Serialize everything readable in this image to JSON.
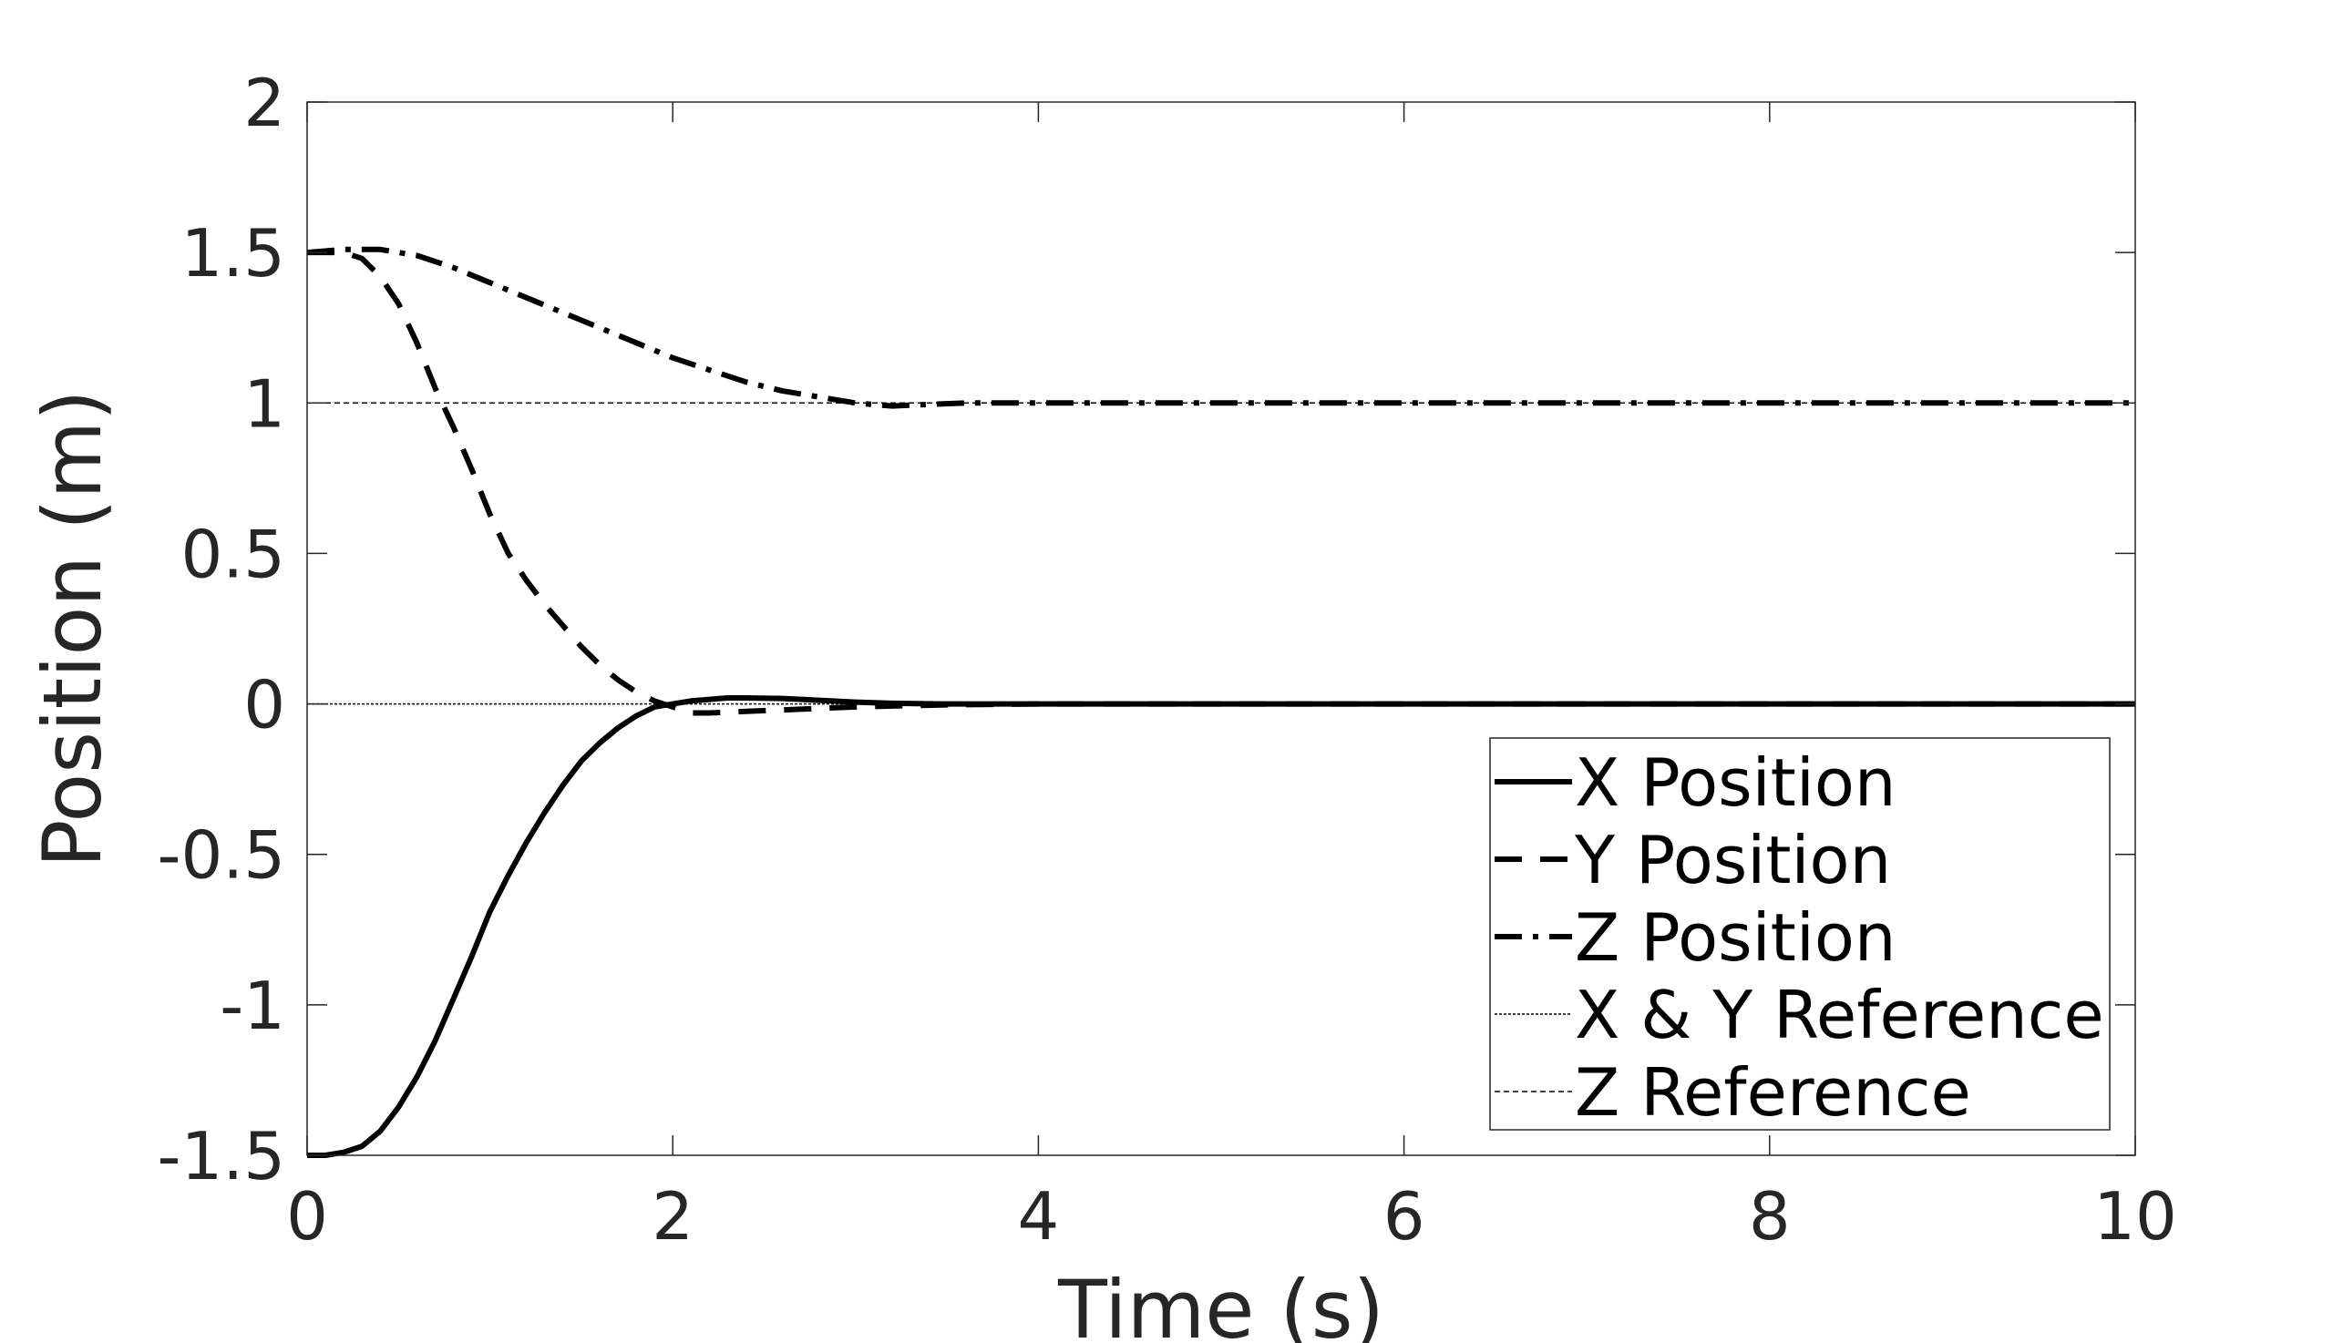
{
  "chart_data": {
    "type": "line",
    "xlabel": "Time (s)",
    "ylabel": "Position (m)",
    "xlim": [
      0,
      10
    ],
    "ylim": [
      -1.5,
      2
    ],
    "xticks": [
      0,
      2,
      4,
      6,
      8,
      10
    ],
    "xtick_labels": [
      "0",
      "2",
      "4",
      "6",
      "8",
      "10"
    ],
    "yticks": [
      -1.5,
      -1,
      -0.5,
      0,
      0.5,
      1,
      1.5,
      2
    ],
    "ytick_labels": [
      "-1.5",
      "-1",
      "-0.5",
      "0",
      "0.5",
      "1",
      "1.5",
      "2"
    ],
    "grid": false,
    "legend_position": "bottom-right",
    "series": [
      {
        "name": "X Position",
        "style": "solid",
        "x": [
          0,
          0.1,
          0.2,
          0.3,
          0.4,
          0.5,
          0.6,
          0.7,
          0.8,
          0.9,
          1.0,
          1.1,
          1.2,
          1.3,
          1.4,
          1.5,
          1.6,
          1.7,
          1.8,
          1.9,
          2.0,
          2.1,
          2.2,
          2.3,
          2.4,
          2.6,
          2.8,
          3.0,
          3.2,
          3.5,
          4.0,
          5.0,
          6.0,
          7.0,
          8.0,
          9.0,
          10.0
        ],
        "y": [
          -1.5,
          -1.5,
          -1.49,
          -1.47,
          -1.42,
          -1.34,
          -1.24,
          -1.12,
          -0.98,
          -0.84,
          -0.69,
          -0.57,
          -0.46,
          -0.36,
          -0.27,
          -0.19,
          -0.13,
          -0.08,
          -0.04,
          -0.01,
          0.0,
          0.01,
          0.015,
          0.02,
          0.02,
          0.018,
          0.012,
          0.006,
          0.002,
          0.0,
          0.0,
          0.0,
          0.0,
          0.0,
          0.0,
          0.0,
          0.0
        ]
      },
      {
        "name": "Y Position",
        "style": "dashed",
        "x": [
          0,
          0.1,
          0.2,
          0.3,
          0.4,
          0.5,
          0.6,
          0.7,
          0.8,
          0.9,
          1.0,
          1.1,
          1.2,
          1.3,
          1.4,
          1.5,
          1.6,
          1.7,
          1.8,
          1.9,
          2.0,
          2.1,
          2.2,
          2.4,
          2.6,
          2.8,
          3.0,
          3.2,
          3.5,
          4.0,
          5.0,
          6.0,
          7.0,
          8.0,
          9.0,
          10.0
        ],
        "y": [
          1.5,
          1.5,
          1.5,
          1.48,
          1.42,
          1.33,
          1.2,
          1.05,
          0.92,
          0.78,
          0.63,
          0.5,
          0.41,
          0.33,
          0.26,
          0.19,
          0.13,
          0.08,
          0.04,
          0.01,
          -0.01,
          -0.03,
          -0.03,
          -0.025,
          -0.02,
          -0.015,
          -0.01,
          -0.007,
          -0.003,
          0.0,
          0.0,
          0.0,
          0.0,
          0.0,
          0.0,
          0.0
        ]
      },
      {
        "name": "Z Position",
        "style": "dashdot",
        "x": [
          0,
          0.2,
          0.4,
          0.6,
          0.8,
          1.0,
          1.2,
          1.4,
          1.6,
          1.8,
          2.0,
          2.2,
          2.4,
          2.6,
          2.8,
          3.0,
          3.2,
          3.4,
          3.6,
          4.0,
          5.0,
          6.0,
          7.0,
          8.0,
          9.0,
          10.0
        ],
        "y": [
          1.5,
          1.51,
          1.51,
          1.49,
          1.45,
          1.4,
          1.35,
          1.3,
          1.25,
          1.2,
          1.15,
          1.11,
          1.07,
          1.04,
          1.02,
          1.0,
          0.99,
          0.995,
          1.0,
          1.0,
          1.0,
          1.0,
          1.0,
          1.0,
          1.0,
          1.0
        ]
      },
      {
        "name": "X & Y Reference",
        "style": "thin-dotted",
        "x": [
          0,
          10
        ],
        "y": [
          0,
          0
        ]
      },
      {
        "name": "Z Reference",
        "style": "thin-dashed",
        "x": [
          0,
          10
        ],
        "y": [
          1,
          1
        ]
      }
    ]
  }
}
